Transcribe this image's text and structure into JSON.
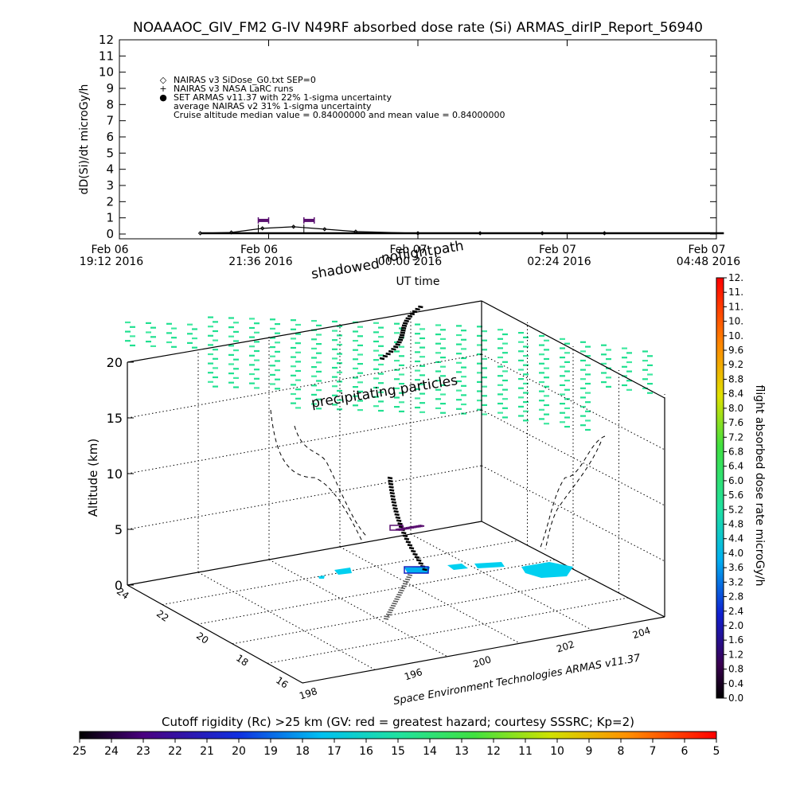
{
  "title": "NOAAAOC_GIV_FM2 G-IV    N49RF  absorbed dose rate (Si) ARMAS_dirIP_Report_56940",
  "footer_credit": "Space Environment Technologies ARMAS v11.37",
  "chart_data": [
    {
      "type": "line",
      "ylabel": "dD(Si)/dt microGy/h",
      "xlabel": "UT time",
      "ylim": [
        0,
        12
      ],
      "yticks": [
        "0",
        "1",
        "2",
        "3",
        "4",
        "5",
        "6",
        "7",
        "8",
        "9",
        "10",
        "11",
        "12"
      ],
      "xticks": [
        {
          "date": "Feb 06",
          "time": "19:12 2016"
        },
        {
          "date": "Feb 06",
          "time": "21:36 2016"
        },
        {
          "date": "Feb 07",
          "time": "00:00 2016"
        },
        {
          "date": "Feb 07",
          "time": "02:24 2016"
        },
        {
          "date": "Feb 07",
          "time": "04:48 2016"
        }
      ],
      "xlim": [
        "2016-02-06 19:12",
        "2016-02-07 04:48"
      ],
      "legend": [
        {
          "symbol": "◇",
          "label": "NAIRAS v3 SiDose_G0.txt SEP=0"
        },
        {
          "symbol": "+",
          "label": "NAIRAS v3 NASA LaRC runs"
        },
        {
          "symbol": "●",
          "label": "SET ARMAS v11.37 with 22% 1-sigma uncertainty"
        },
        {
          "symbol": "",
          "label": "average NAIRAS v2 31% 1-sigma uncertainty"
        },
        {
          "symbol": "",
          "label": "Cruise altitude median value = 0.84000000 and mean value = 0.84000000"
        }
      ],
      "series": [
        {
          "name": "NAIRAS v3 SiDose_G0.txt SEP=0",
          "x": [
            "2016-02-06 20:30",
            "2016-02-06 21:00",
            "2016-02-06 21:30",
            "2016-02-06 22:00",
            "2016-02-06 22:30",
            "2016-02-06 23:00",
            "2016-02-07 00:00",
            "2016-02-07 01:00",
            "2016-02-07 02:00",
            "2016-02-07 03:00"
          ],
          "values": [
            0.05,
            0.1,
            0.35,
            0.45,
            0.3,
            0.15,
            0.05,
            0.05,
            0.05,
            0.05
          ]
        },
        {
          "name": "SET ARMAS v11.37 with 22% 1-sigma uncertainty",
          "x": [
            "2016-02-06 21:26",
            "2016-02-06 21:36",
            "2016-02-06 22:10",
            "2016-02-06 22:20"
          ],
          "values": [
            0.84,
            0.84,
            0.84,
            0.84
          ]
        }
      ]
    },
    {
      "type": "scatter",
      "ylabel": "Altitude (km)",
      "zticks": [
        "0",
        "5",
        "10",
        "15",
        "20"
      ],
      "lat_ticks": [
        "24",
        "22",
        "20",
        "18",
        "16"
      ],
      "lon_ticks": [
        "198",
        "196",
        "200",
        "202",
        "204"
      ],
      "annotations": [
        "shadowed",
        "path",
        "noflight",
        "precipitating particles"
      ],
      "colorbar": {
        "label": "flight absorbed dose rate microGy/h",
        "ticks": [
          "0.0",
          "0.4",
          "0.8",
          "1.2",
          "1.6",
          "2.0",
          "2.4",
          "2.8",
          "3.2",
          "3.6",
          "4.0",
          "4.4",
          "4.8",
          "5.2",
          "5.6",
          "6.0",
          "6.4",
          "6.8",
          "7.2",
          "7.6",
          "8.0",
          "8.4",
          "8.8",
          "9.2",
          "9.6",
          "10.",
          "10.",
          "11.",
          "11.",
          "12."
        ]
      },
      "rigidity_bar": {
        "label": "Cutoff rigidity (Rc) >25 km (GV: red = greatest hazard; courtesy SSSRC; Kp=2)",
        "ticks": [
          "25",
          "24",
          "23",
          "22",
          "21",
          "20",
          "19",
          "18",
          "17",
          "16",
          "15",
          "14",
          "13",
          "12",
          "11",
          "10",
          "9",
          "8",
          "7",
          "6",
          "5"
        ]
      }
    }
  ]
}
